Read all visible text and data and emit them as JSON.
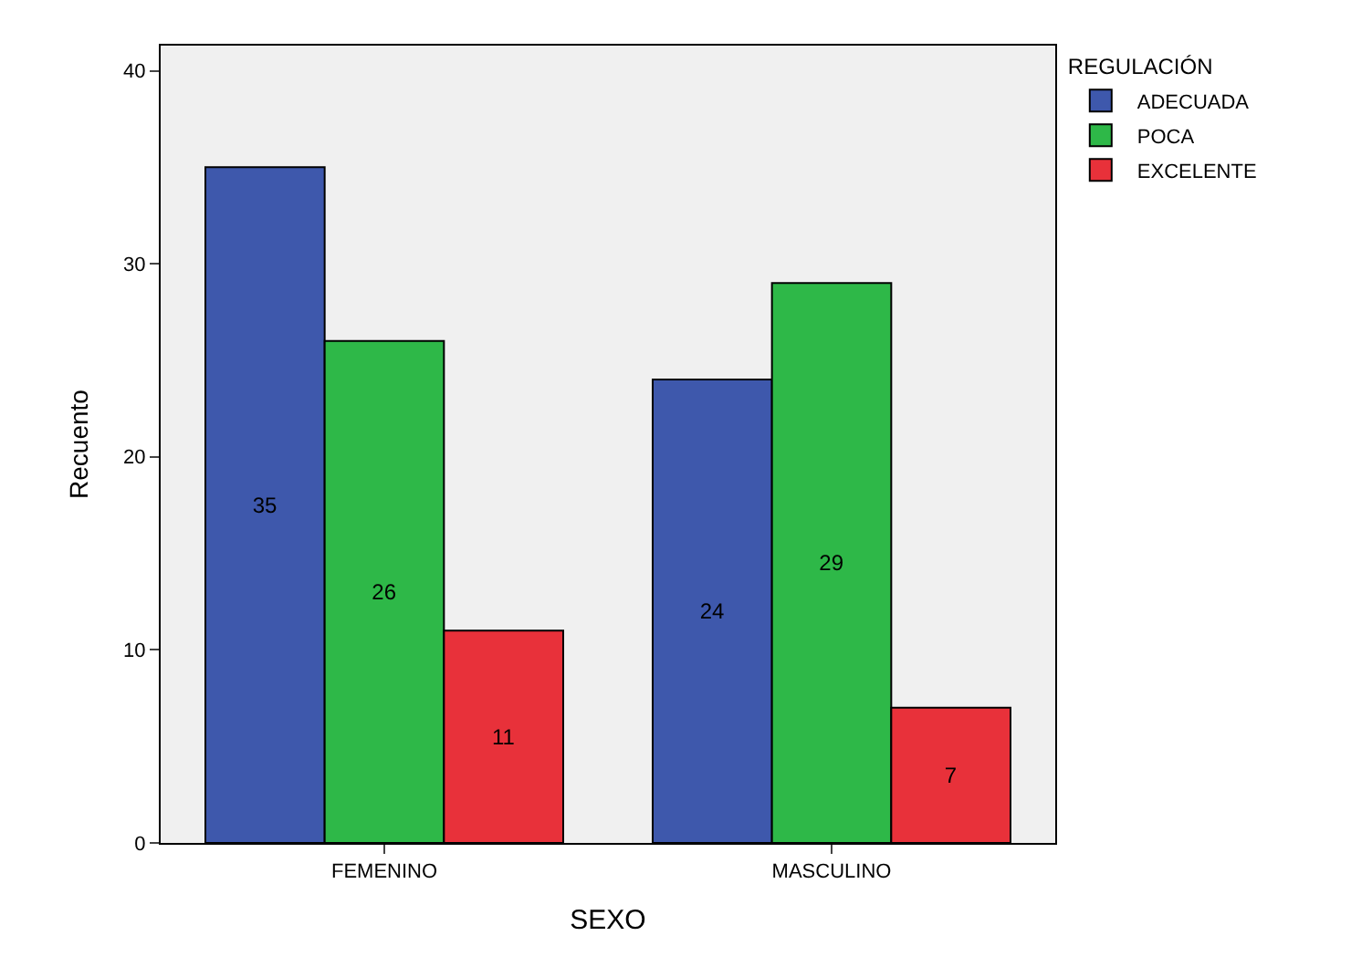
{
  "chart_data": {
    "type": "bar",
    "xlabel": "SEXO",
    "ylabel": "Recuento",
    "legend_title": "REGULACIÓN",
    "categories": [
      "FEMENINO",
      "MASCULINO"
    ],
    "series": [
      {
        "name": "ADECUADA",
        "color": "#3e58ac",
        "values": [
          35,
          24
        ]
      },
      {
        "name": "POCA",
        "color": "#2eb848",
        "values": [
          26,
          29
        ]
      },
      {
        "name": "EXCELENTE",
        "color": "#e8313a",
        "values": [
          11,
          7
        ]
      }
    ],
    "ylim": [
      0,
      41.3
    ],
    "yticks": [
      0,
      10,
      20,
      30,
      40
    ],
    "data_labels": true,
    "grid": false,
    "legend": "top right"
  }
}
